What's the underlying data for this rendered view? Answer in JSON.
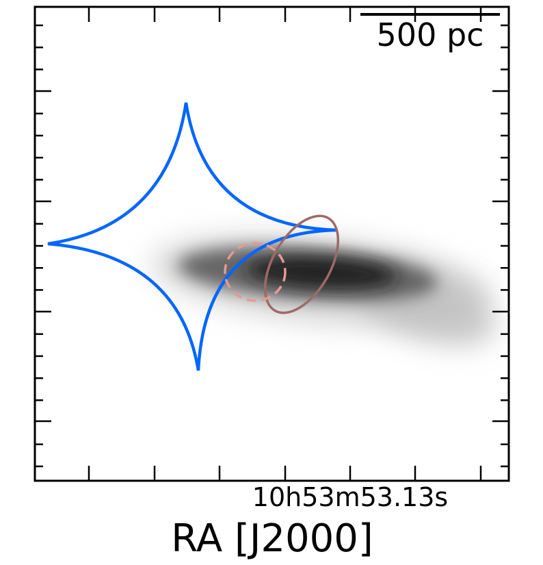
{
  "chart_data": {
    "type": "other",
    "title": "",
    "xlabel": "RA [J2000]",
    "ylabel": "",
    "x_tick_labels": [
      {
        "index": 4,
        "label": "10h53m53.13s"
      }
    ],
    "x_major_tick_count": 7,
    "y_major_tick_count": 4,
    "scale_bar": {
      "label": "500 pc"
    },
    "grid": false,
    "legend": "none",
    "overlays": [
      {
        "name": "caustic",
        "shape": "astroid",
        "color": "#0066ff",
        "line": "solid"
      },
      {
        "name": "critical-ellipse-solid",
        "shape": "ellipse",
        "color": "#9e6a66",
        "line": "solid"
      },
      {
        "name": "critical-ellipse-dashed",
        "shape": "ellipse",
        "color": "#e59a93",
        "line": "dashed"
      }
    ],
    "image": {
      "colormap": "greys",
      "description_free": true
    }
  }
}
